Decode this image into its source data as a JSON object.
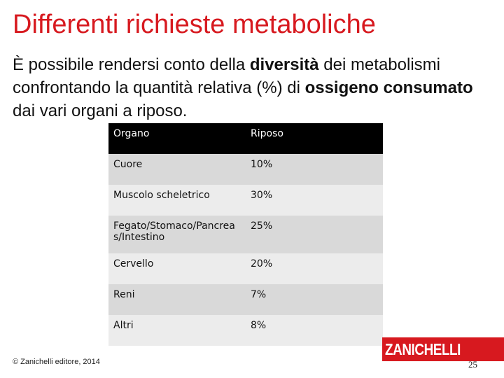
{
  "title": "Differenti richieste metaboliche",
  "intro": {
    "before_bold1": "È possibile rendersi conto della ",
    "bold1": "diversità",
    "after_bold1": " dei metabolismi confrontando la quantità relativa (%) di ",
    "bold2": "ossigeno consumato",
    "after_bold2": " dai vari organi a riposo."
  },
  "table": {
    "headers": [
      "Organo",
      "Riposo"
    ],
    "rows": [
      {
        "organ": "Cuore",
        "value": "10%"
      },
      {
        "organ": "Muscolo scheletrico",
        "value": "30%"
      },
      {
        "organ": "Fegato/Stomaco/Pancreas/Intestino",
        "value": "25%"
      },
      {
        "organ": "Cervello",
        "value": "20%"
      },
      {
        "organ": "Reni",
        "value": "7%"
      },
      {
        "organ": "Altri",
        "value": "8%"
      }
    ]
  },
  "footer": {
    "copyright": "© Zanichelli editore, 2014"
  },
  "logo": {
    "text": "ZANICHELLI",
    "color": "#d7191f"
  },
  "page_number": "25"
}
